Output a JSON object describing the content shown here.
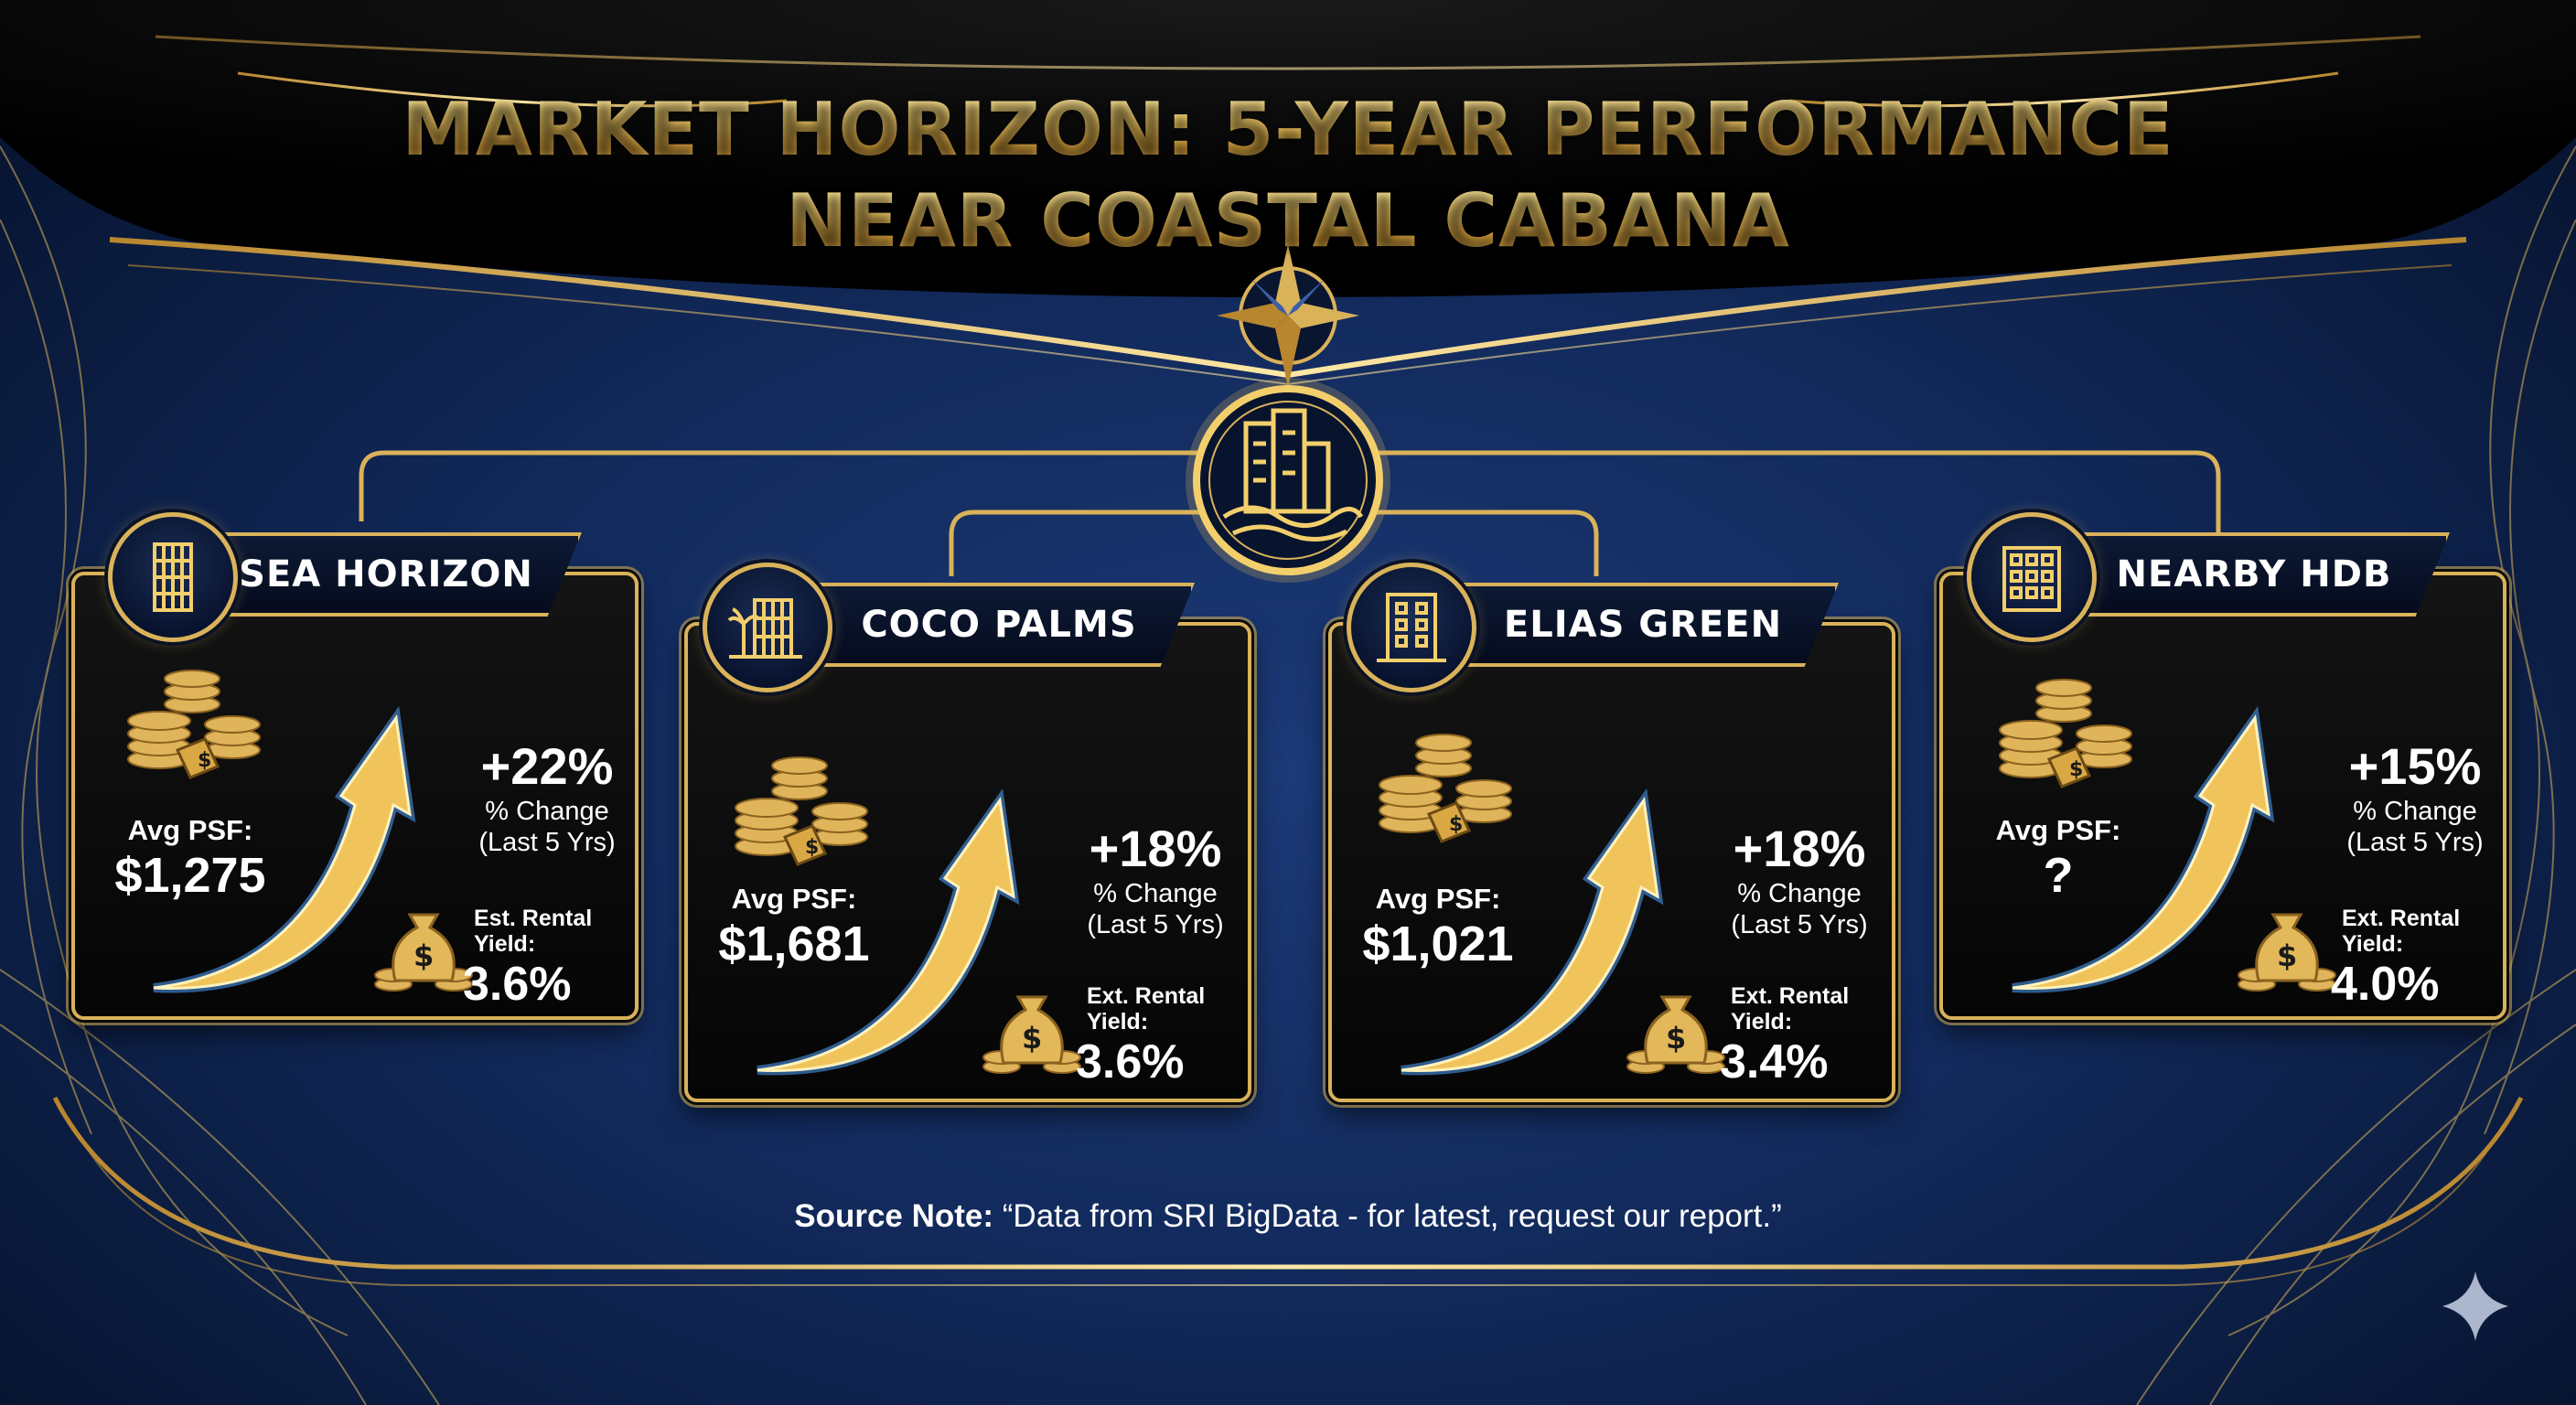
{
  "title": {
    "line1": "MARKET HORIZON: 5-YEAR PERFORMANCE",
    "line2": "NEAR COASTAL CABANA"
  },
  "colors": {
    "gold": "#d9b25a",
    "gold_light": "#f3cf6c",
    "navy": "#122a5c",
    "card_bg": "#0a0a0a",
    "arrow_glow": "#4fa3ff"
  },
  "center_icon": "building-waves-icon",
  "compass_icon": "compass-star-icon",
  "cards": [
    {
      "name": "SEA HORIZON",
      "icon": "tower-icon",
      "avg_psf_label": "Avg PSF:",
      "avg_psf": "$1,275",
      "pct_change": "+22%",
      "pct_caption_1": "% Change",
      "pct_caption_2": "(Last 5 Yrs)",
      "yield_label_1": "Est. Rental",
      "yield_label_2": "Yield:",
      "yield": "3.6%"
    },
    {
      "name": "COCO PALMS",
      "icon": "palm-building-icon",
      "avg_psf_label": "Avg PSF:",
      "avg_psf": "$1,681",
      "pct_change": "+18%",
      "pct_caption_1": "% Change",
      "pct_caption_2": "(Last 5 Yrs)",
      "yield_label_1": "Ext. Rental",
      "yield_label_2": "Yield:",
      "yield": "3.6%"
    },
    {
      "name": "ELIAS GREEN",
      "icon": "apartment-icon",
      "avg_psf_label": "Avg PSF:",
      "avg_psf": "$1,021",
      "pct_change": "+18%",
      "pct_caption_1": "% Change",
      "pct_caption_2": "(Last 5 Yrs)",
      "yield_label_1": "Ext. Rental",
      "yield_label_2": "Yield:",
      "yield": "3.4%"
    },
    {
      "name": "NEARBY HDB",
      "icon": "hdb-block-icon",
      "avg_psf_label": "Avg PSF:",
      "avg_psf": "?",
      "pct_change": "+15%",
      "pct_caption_1": "% Change",
      "pct_caption_2": "(Last 5 Yrs)",
      "yield_label_1": "Ext. Rental",
      "yield_label_2": "Yield:",
      "yield": "4.0%"
    }
  ],
  "source_note": {
    "label": "Source Note:",
    "text": "“Data from SRI BigData - for latest, request our report.”"
  },
  "corner_icon": "sparkle-icon"
}
